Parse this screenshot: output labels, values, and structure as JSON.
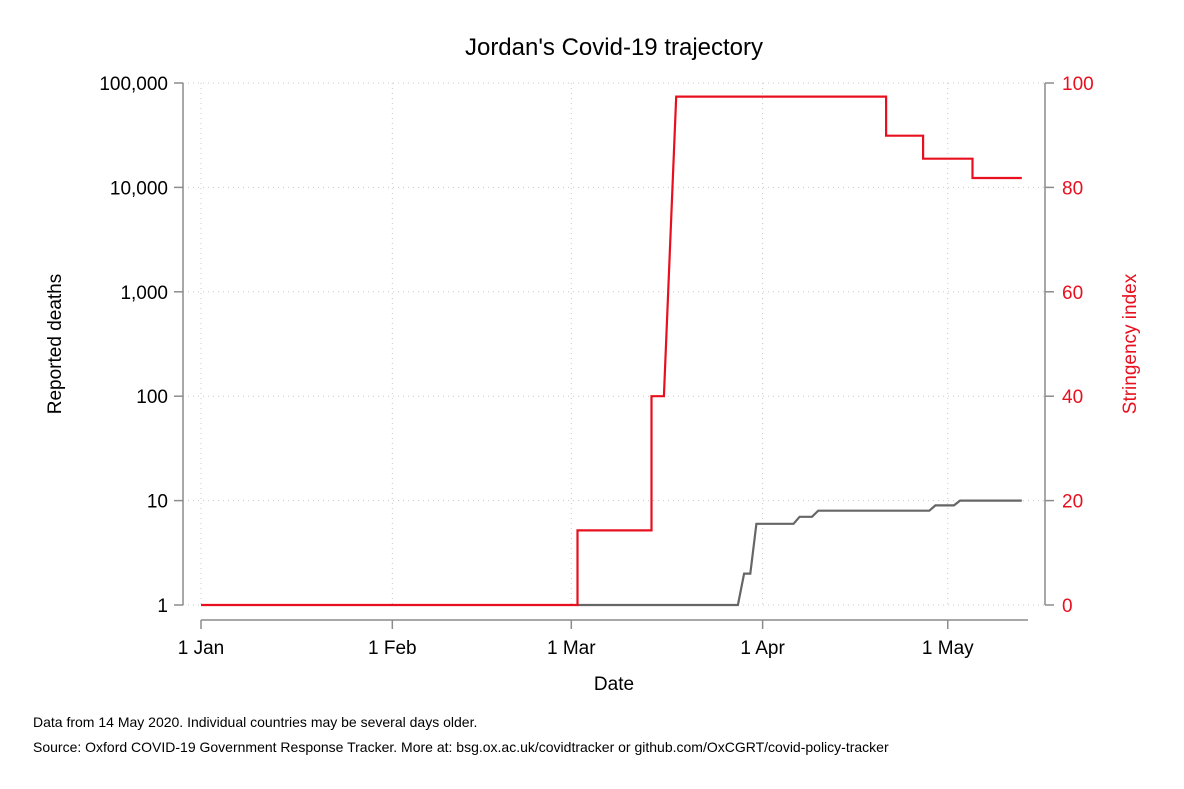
{
  "chart_data": {
    "type": "line",
    "title": "Jordan's Covid-19 trajectory",
    "xlabel": "Date",
    "ylabel_left": "Reported deaths",
    "ylabel_right": "Stringency index",
    "x_range": [
      "2020-01-01",
      "2020-05-14"
    ],
    "x_ticks": [
      {
        "date": "2020-01-01",
        "label": "1 Jan"
      },
      {
        "date": "2020-02-01",
        "label": "1 Feb"
      },
      {
        "date": "2020-03-01",
        "label": "1 Mar"
      },
      {
        "date": "2020-04-01",
        "label": "1 Apr"
      },
      {
        "date": "2020-05-01",
        "label": "1 May"
      }
    ],
    "y_left": {
      "scale": "log",
      "range": [
        1,
        100000
      ],
      "ticks": [
        {
          "value": 1,
          "label": "1"
        },
        {
          "value": 10,
          "label": "10"
        },
        {
          "value": 100,
          "label": "100"
        },
        {
          "value": 1000,
          "label": "1,000"
        },
        {
          "value": 10000,
          "label": "10,000"
        },
        {
          "value": 100000,
          "label": "100,000"
        }
      ]
    },
    "y_right": {
      "scale": "linear",
      "range": [
        0,
        100
      ],
      "ticks": [
        {
          "value": 0,
          "label": "0"
        },
        {
          "value": 20,
          "label": "20"
        },
        {
          "value": 40,
          "label": "40"
        },
        {
          "value": 60,
          "label": "60"
        },
        {
          "value": 80,
          "label": "80"
        },
        {
          "value": 100,
          "label": "100"
        }
      ]
    },
    "grid": true,
    "series": [
      {
        "axis": "left",
        "color": "#666666",
        "points": [
          [
            "2020-03-02",
            1
          ],
          [
            "2020-03-28",
            1
          ],
          [
            "2020-03-29",
            2
          ],
          [
            "2020-03-30",
            2
          ],
          [
            "2020-03-31",
            6
          ],
          [
            "2020-04-06",
            6
          ],
          [
            "2020-04-07",
            7
          ],
          [
            "2020-04-09",
            7
          ],
          [
            "2020-04-10",
            8
          ],
          [
            "2020-04-28",
            8
          ],
          [
            "2020-04-29",
            9
          ],
          [
            "2020-05-02",
            9
          ],
          [
            "2020-05-03",
            10
          ],
          [
            "2020-05-13",
            10
          ]
        ]
      },
      {
        "axis": "right",
        "color": "#e8101e",
        "points": [
          [
            "2020-01-01",
            0
          ],
          [
            "2020-03-02",
            0
          ],
          [
            "2020-03-02",
            14.3
          ],
          [
            "2020-03-14",
            14.3
          ],
          [
            "2020-03-14",
            40.0
          ],
          [
            "2020-03-16",
            40.0
          ],
          [
            "2020-03-18",
            97.4
          ],
          [
            "2020-04-21",
            97.4
          ],
          [
            "2020-04-21",
            89.9
          ],
          [
            "2020-04-27",
            89.9
          ],
          [
            "2020-04-27",
            85.5
          ],
          [
            "2020-05-05",
            85.5
          ],
          [
            "2020-05-05",
            81.8
          ],
          [
            "2020-05-13",
            81.8
          ]
        ]
      }
    ]
  },
  "notes": {
    "line1": "Data from 14 May 2020. Individual countries may be several days older.",
    "line2": "Source: Oxford COVID-19 Government Response Tracker. More at: bsg.ox.ac.uk/covidtracker or github.com/OxCGRT/covid-policy-tracker"
  }
}
